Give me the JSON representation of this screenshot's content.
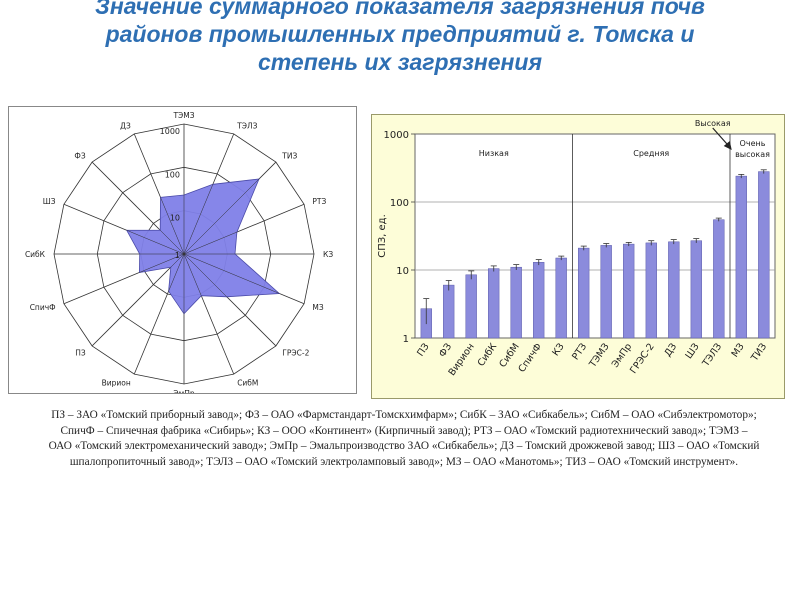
{
  "title": {
    "line1": "Значение суммарного показателя загрязнения почв",
    "line2": "районов промышленных предприятий г. Томска и",
    "line3": "степень их загрязнения"
  },
  "chart_data": [
    {
      "type": "radar",
      "scale": "log",
      "rings": [
        "1",
        "10",
        "100",
        "1000"
      ],
      "categories": [
        "ТЭМЗ",
        "ТЭЛЗ",
        "ТИЗ",
        "РТЗ",
        "КЗ",
        "МЗ",
        "ГРЭС-2",
        "СибМ",
        "ЭмПр",
        "Вирион",
        "ПЗ",
        "СпичФ",
        "СибК",
        "ШЗ",
        "ФЗ",
        "ДЗ"
      ],
      "values": [
        23,
        55,
        280,
        21,
        15,
        240,
        25,
        11,
        24,
        8.5,
        2.7,
        13,
        10.5,
        27,
        6,
        26
      ],
      "fill": "#7f7fe8"
    },
    {
      "type": "bar",
      "scale": "log",
      "ylabel": "СПЗ, ед.",
      "yticks": [
        "1",
        "10",
        "100",
        "1000"
      ],
      "ylim": [
        1,
        1000
      ],
      "categories": [
        "ПЗ",
        "ФЗ",
        "Вирион",
        "СибК",
        "СибМ",
        "СпичФ",
        "КЗ",
        "РТЗ",
        "ТЭМЗ",
        "ЭмПр",
        "ГРЭС-2",
        "ДЗ",
        "ШЗ",
        "ТЭЛЗ",
        "МЗ",
        "ТИЗ"
      ],
      "values": [
        2.7,
        6,
        8.5,
        10.5,
        11,
        13,
        15,
        21,
        23,
        24,
        25,
        26,
        27,
        55,
        240,
        280
      ],
      "errors": [
        1.1,
        1.0,
        1.2,
        1.0,
        1.0,
        1.2,
        1.0,
        1.5,
        1.5,
        1.5,
        2.0,
        2.0,
        2.0,
        3.0,
        15,
        18
      ],
      "zones": [
        {
          "label": "Низкая",
          "until_index": 7
        },
        {
          "label": "Средняя",
          "until_index": 14
        },
        {
          "label": "Очень высокая",
          "until_index": 16
        }
      ],
      "annotation": "Высокая",
      "bar_color": "#8b8bdc"
    }
  ],
  "caption": "ПЗ – ЗАО «Томский приборный завод»; ФЗ – ОАО «Фармстандарт-Томскхимфарм»; СибК – ЗАО «Сибкабель»; СибМ – ОАО «Сибэлектромотор»; СпичФ – Спичечная фабрика «Сибирь»; КЗ – ООО «Континент» (Кирпичный завод); РТЗ – ОАО «Томский радиотехнический завод»; ТЭМЗ – ОАО «Томский электромеханический завод»; ЭмПр – Эмальпроизводство ЗАО «Сибкабель»; ДЗ – Томский дрожжевой завод; ШЗ – ОАО «Томский шпалопропиточный завод»; ТЭЛЗ – ОАО «Томский электроламповый завод»; МЗ – ОАО «Манотомь»; ТИЗ – ОАО «Томский инструмент»."
}
